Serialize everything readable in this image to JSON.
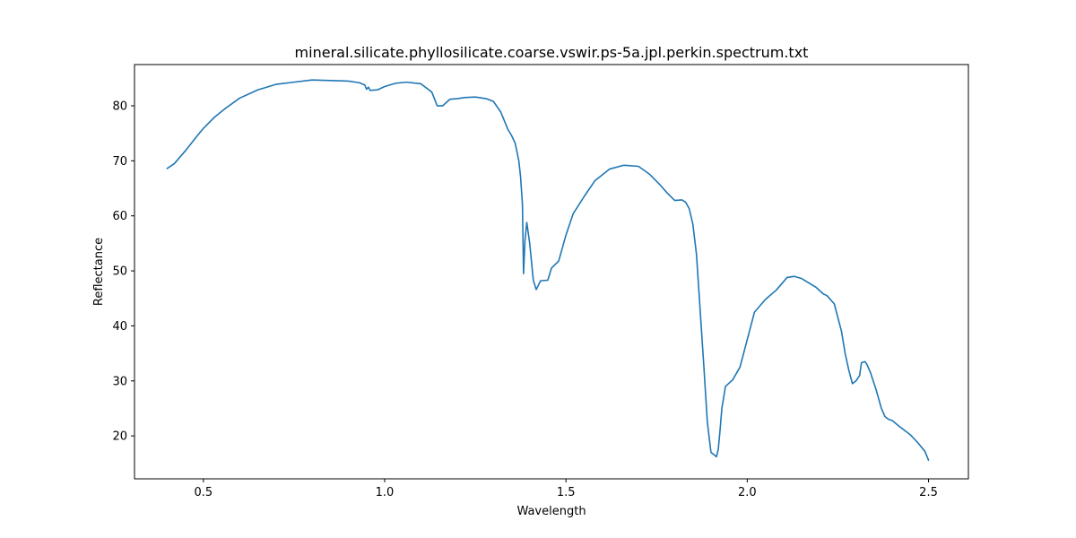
{
  "chart_data": {
    "type": "line",
    "title": "mineral.silicate.phyllosilicate.coarse.vswir.ps-5a.jpl.perkin.spectrum.txt",
    "xlabel": "Wavelength",
    "ylabel": "Reflectance",
    "xlim": [
      0.31,
      2.61
    ],
    "ylim": [
      12.2,
      87.5
    ],
    "xticks": [
      0.5,
      1.0,
      1.5,
      2.0,
      2.5
    ],
    "xtick_labels": [
      "0.5",
      "1.0",
      "1.5",
      "2.0",
      "2.5"
    ],
    "yticks": [
      20,
      30,
      40,
      50,
      60,
      70,
      80
    ],
    "ytick_labels": [
      "20",
      "30",
      "40",
      "50",
      "60",
      "70",
      "80"
    ],
    "grid": false,
    "legend": "none",
    "series": [
      {
        "color": "#1f77b4",
        "x": [
          0.4,
          0.42,
          0.45,
          0.48,
          0.5,
          0.53,
          0.56,
          0.6,
          0.65,
          0.7,
          0.75,
          0.8,
          0.85,
          0.9,
          0.93,
          0.945,
          0.95,
          0.955,
          0.96,
          0.98,
          1.0,
          1.03,
          1.06,
          1.1,
          1.13,
          1.145,
          1.16,
          1.18,
          1.2,
          1.22,
          1.25,
          1.28,
          1.3,
          1.32,
          1.34,
          1.35,
          1.36,
          1.37,
          1.375,
          1.38,
          1.383,
          1.387,
          1.392,
          1.4,
          1.41,
          1.418,
          1.43,
          1.45,
          1.46,
          1.48,
          1.5,
          1.52,
          1.55,
          1.58,
          1.62,
          1.66,
          1.7,
          1.73,
          1.76,
          1.78,
          1.8,
          1.82,
          1.83,
          1.84,
          1.85,
          1.86,
          1.87,
          1.88,
          1.89,
          1.9,
          1.91,
          1.915,
          1.92,
          1.925,
          1.93,
          1.94,
          1.96,
          1.98,
          2.0,
          2.02,
          2.05,
          2.08,
          2.11,
          2.13,
          2.15,
          2.17,
          2.19,
          2.21,
          2.22,
          2.24,
          2.26,
          2.27,
          2.28,
          2.29,
          2.3,
          2.31,
          2.315,
          2.325,
          2.33,
          2.34,
          2.355,
          2.37,
          2.38,
          2.39,
          2.4,
          2.42,
          2.45,
          2.47,
          2.49,
          2.5
        ],
        "y": [
          68.6,
          69.5,
          71.8,
          74.3,
          75.9,
          77.9,
          79.5,
          81.4,
          82.9,
          83.9,
          84.3,
          84.7,
          84.6,
          84.5,
          84.2,
          83.8,
          83.0,
          83.4,
          82.8,
          82.9,
          83.5,
          84.1,
          84.3,
          84.0,
          82.5,
          80.0,
          80.0,
          81.2,
          81.3,
          81.5,
          81.6,
          81.3,
          80.8,
          78.9,
          75.7,
          74.6,
          73.2,
          70.0,
          67.0,
          62.0,
          49.5,
          55.5,
          58.8,
          55.0,
          48.3,
          46.6,
          48.2,
          48.3,
          50.5,
          51.8,
          56.5,
          60.4,
          63.5,
          66.4,
          68.5,
          69.2,
          69.0,
          67.6,
          65.6,
          64.1,
          62.8,
          62.9,
          62.5,
          61.3,
          58.5,
          53.0,
          43.0,
          33.0,
          22.5,
          17.0,
          16.5,
          16.2,
          17.5,
          21.0,
          25.0,
          29.0,
          30.2,
          32.5,
          37.5,
          42.5,
          44.8,
          46.5,
          48.8,
          49.0,
          48.6,
          47.8,
          47.0,
          45.8,
          45.5,
          44.0,
          39.0,
          35.0,
          32.0,
          29.5,
          30.0,
          31.0,
          33.3,
          33.5,
          33.0,
          31.5,
          28.5,
          25.0,
          23.5,
          23.0,
          22.8,
          21.7,
          20.2,
          18.8,
          17.2,
          15.6
        ]
      }
    ]
  }
}
